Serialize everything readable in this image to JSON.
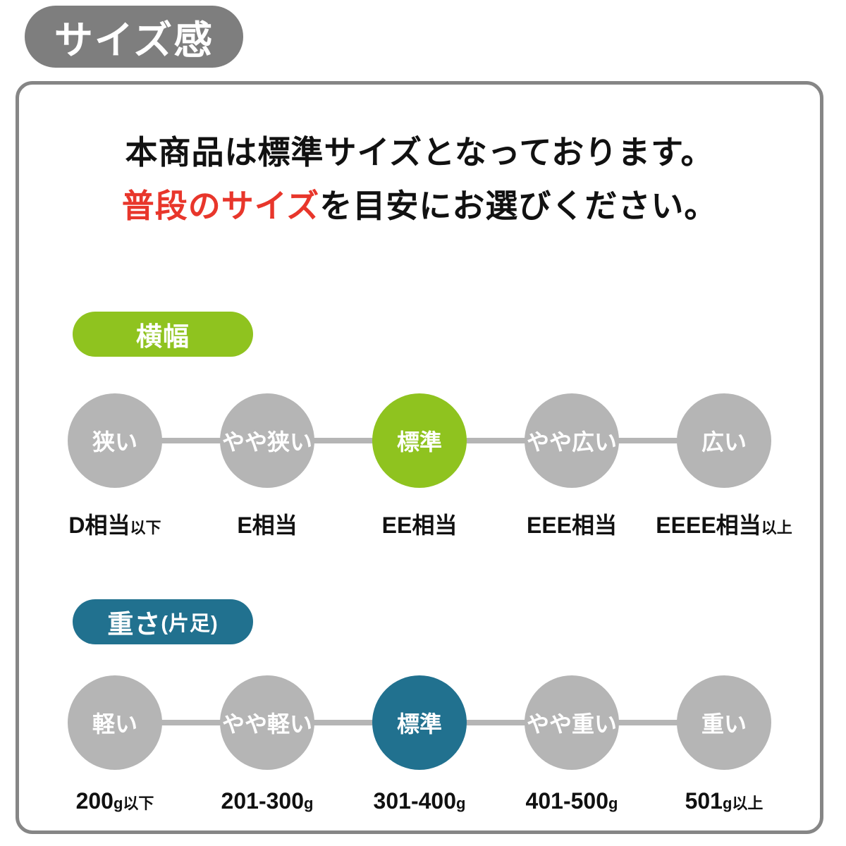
{
  "header": {
    "title": "サイズ感"
  },
  "intro": {
    "line1": "本商品は標準サイズとなっております。",
    "line2_highlight": "普段のサイズ",
    "line2_rest": "を目安にお選びください。"
  },
  "colors": {
    "accent_green": "#8fc31f",
    "accent_teal": "#21718f",
    "highlight_red": "#e8362b",
    "circle_gray": "#b5b5b5",
    "badge_gray": "#7e7e7e",
    "frame_border_gray": "#868686"
  },
  "scales": [
    {
      "badge": "横幅",
      "badge_suffix": "",
      "active_index": 2,
      "steps": [
        {
          "circle": "狭い",
          "label": "D相当",
          "label_suffix": "以下"
        },
        {
          "circle": "やや狭い",
          "label": "E相当",
          "label_suffix": ""
        },
        {
          "circle": "標準",
          "label": "EE相当",
          "label_suffix": ""
        },
        {
          "circle": "やや広い",
          "label": "EEE相当",
          "label_suffix": ""
        },
        {
          "circle": "広い",
          "label": "EEEE相当",
          "label_suffix": "以上"
        }
      ]
    },
    {
      "badge": "重さ",
      "badge_suffix": "(片足)",
      "active_index": 2,
      "steps": [
        {
          "circle": "軽い",
          "label": "200",
          "label_suffix": "g以下"
        },
        {
          "circle": "やや軽い",
          "label": "201-300",
          "label_suffix": "g"
        },
        {
          "circle": "標準",
          "label": "301-400",
          "label_suffix": "g"
        },
        {
          "circle": "やや重い",
          "label": "401-500",
          "label_suffix": "g"
        },
        {
          "circle": "重い",
          "label": "501",
          "label_suffix": "g以上"
        }
      ]
    }
  ]
}
